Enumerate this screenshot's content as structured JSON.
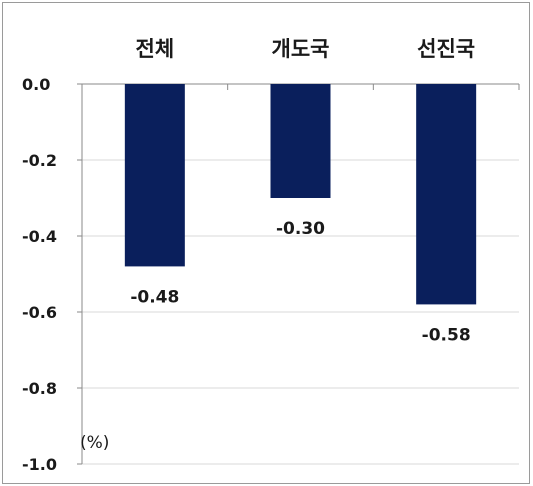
{
  "chart_data": {
    "type": "bar",
    "categories": [
      "전체",
      "개도국",
      "선진국"
    ],
    "values": [
      -0.48,
      -0.3,
      -0.58
    ],
    "data_labels": [
      "-0.48",
      "-0.30",
      "-0.58"
    ],
    "y_ticks": [
      "0.0",
      "-0.2",
      "-0.4",
      "-0.6",
      "-0.8",
      "-1.0"
    ],
    "ylim": [
      -1.0,
      0.0
    ],
    "unit_label": "(%)",
    "bar_color": "#0a1f5c",
    "grid": true,
    "category_axis_position": "top"
  }
}
